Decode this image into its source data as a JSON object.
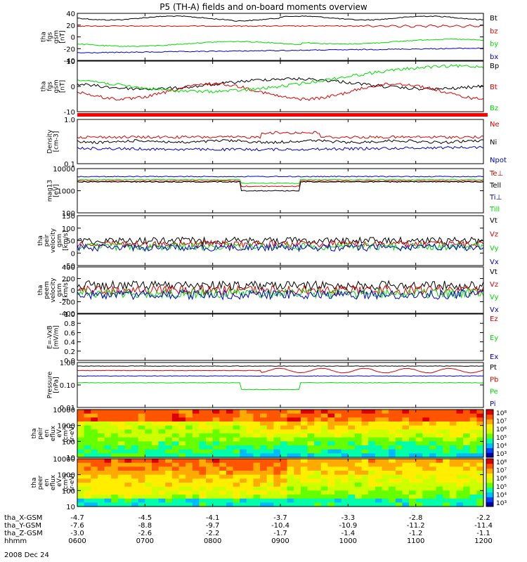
{
  "title": "P5 (TH-A) fields and on-board moments overview",
  "date_label": "2008 Dec 24",
  "colors": {
    "black": "#000000",
    "red": "#dd0000",
    "green": "#00dd00",
    "blue": "#0000cc"
  },
  "chart_data": [
    {
      "type": "line",
      "id": "fgs-gsm",
      "ylabel_lines": [
        "tha",
        "fgs",
        "gsm",
        "[nT]"
      ],
      "yticks": [
        "40",
        "20",
        "0",
        "-20",
        "-40"
      ],
      "ylim": [
        -40,
        40
      ],
      "series": [
        {
          "name": "Bt",
          "color": "black"
        },
        {
          "name": "bz",
          "color": "red"
        },
        {
          "name": "by",
          "color": "green"
        },
        {
          "name": "bx",
          "color": "blue"
        }
      ]
    },
    {
      "type": "line",
      "id": "fgs-gse-dsl",
      "ylabel_lines": [
        "tha",
        "fgs",
        "gsm",
        "[nT]"
      ],
      "yticks": [
        "10",
        "0",
        "-10"
      ],
      "ylim": [
        -15,
        15
      ],
      "series": [
        {
          "name": "Bp",
          "color": "black"
        },
        {
          "name": "Bt",
          "color": "red"
        },
        {
          "name": "Bz",
          "color": "green"
        }
      ]
    },
    {
      "type": "line",
      "id": "density",
      "scale": "log",
      "ylabel_lines": [
        "Density",
        "[cm-3]"
      ],
      "yticks": [
        "1.0",
        "0.1"
      ],
      "ylim": [
        0.1,
        1.0
      ],
      "series": [
        {
          "name": "Ne",
          "color": "red"
        },
        {
          "name": "Ni",
          "color": "black"
        },
        {
          "name": "Npot",
          "color": "blue"
        }
      ]
    },
    {
      "type": "line",
      "id": "temperature",
      "scale": "log",
      "ylabel_lines": [
        "mag13",
        "[eV]"
      ],
      "yticks": [
        "10000",
        "1000",
        "100"
      ],
      "ylim": [
        100,
        10000
      ],
      "series": [
        {
          "name": "Te⊥",
          "color": "red"
        },
        {
          "name": "Tell",
          "color": "black"
        },
        {
          "name": "Ti⊥",
          "color": "blue"
        },
        {
          "name": "Till",
          "color": "green"
        }
      ]
    },
    {
      "type": "line",
      "id": "peir-velocity",
      "ylabel_lines": [
        "tha",
        "peir",
        "velocity",
        "gsm",
        "[km/s]"
      ],
      "yticks": [
        "150",
        "100",
        "50",
        "0",
        "-50"
      ],
      "ylim": [
        -75,
        160
      ],
      "series": [
        {
          "name": "Vt",
          "color": "black"
        },
        {
          "name": "Vz",
          "color": "red"
        },
        {
          "name": "Vy",
          "color": "green"
        },
        {
          "name": "Vx",
          "color": "blue"
        }
      ]
    },
    {
      "type": "line",
      "id": "peem-velocity",
      "ylabel_lines": [
        "tha",
        "peem",
        "velocity",
        "gsm",
        "[km/s]"
      ],
      "yticks": [
        "400",
        "200",
        "0",
        "-200",
        "-400"
      ],
      "ylim": [
        -400,
        400
      ],
      "series": [
        {
          "name": "Vt",
          "color": "black"
        },
        {
          "name": "Vz",
          "color": "red"
        },
        {
          "name": "Vy",
          "color": "green"
        },
        {
          "name": "Vx",
          "color": "blue"
        }
      ]
    },
    {
      "type": "line",
      "id": "efield",
      "ylabel_lines": [
        "E=-VxB",
        "[mV/m]"
      ],
      "yticks": [
        "1.0",
        "0.8",
        "0.6",
        "0.4",
        "0.2",
        "0.0"
      ],
      "ylim": [
        0,
        1
      ],
      "series": [
        {
          "name": "Ez",
          "color": "red"
        },
        {
          "name": "Ey",
          "color": "green"
        },
        {
          "name": "Ex",
          "color": "blue"
        }
      ]
    },
    {
      "type": "line",
      "id": "pressure",
      "scale": "log",
      "ylabel_lines": [
        "Pressure",
        "[nPa]"
      ],
      "yticks": [
        "1.00",
        "0.10",
        "0.01"
      ],
      "ylim": [
        0.01,
        1.0
      ],
      "series": [
        {
          "name": "Pt",
          "color": "black"
        },
        {
          "name": "Pb",
          "color": "red"
        },
        {
          "name": "Pe",
          "color": "green"
        },
        {
          "name": "Pi",
          "color": "blue"
        }
      ]
    },
    {
      "type": "heatmap",
      "id": "peir-spectrum",
      "ylabel_lines": [
        "tha",
        "peir",
        "en",
        "eflux",
        "eV",
        "(cm²s",
        "sr-eV)"
      ],
      "yticks": [
        "10000",
        "1000",
        "100",
        "10"
      ],
      "colorbar_labels": [
        "10⁸",
        "10⁷",
        "10⁶",
        "10⁵",
        "10⁴",
        "10³"
      ]
    },
    {
      "type": "heatmap",
      "id": "peer-spectrum",
      "ylabel_lines": [
        "tha",
        "peer",
        "en",
        "eflux",
        "eV",
        "(cm²s",
        "sr-eV)"
      ],
      "yticks": [
        "10000",
        "1000",
        "100",
        "10"
      ],
      "colorbar_labels": [
        "10⁸",
        "10⁷",
        "10⁶",
        "10⁵",
        "10⁴",
        "10³"
      ]
    }
  ],
  "xaxis": {
    "rows": [
      {
        "label": "tha_X-GSM",
        "values": [
          "-4.7",
          "-4.5",
          "-4.1",
          "-3.7",
          "-3.3",
          "-2.8",
          "-2.2"
        ]
      },
      {
        "label": "tha_Y-GSM",
        "values": [
          "-7.6",
          "-8.8",
          "-9.7",
          "-10.4",
          "-10.9",
          "-11.2",
          "-11.4"
        ]
      },
      {
        "label": "tha_Z-GSM",
        "values": [
          "-3.0",
          "-2.6",
          "-2.2",
          "-1.7",
          "-1.4",
          "-1.2",
          "-1.1"
        ]
      },
      {
        "label": "hhmm",
        "values": [
          "0600",
          "0700",
          "0800",
          "0900",
          "1000",
          "1100",
          "1200"
        ]
      }
    ]
  }
}
